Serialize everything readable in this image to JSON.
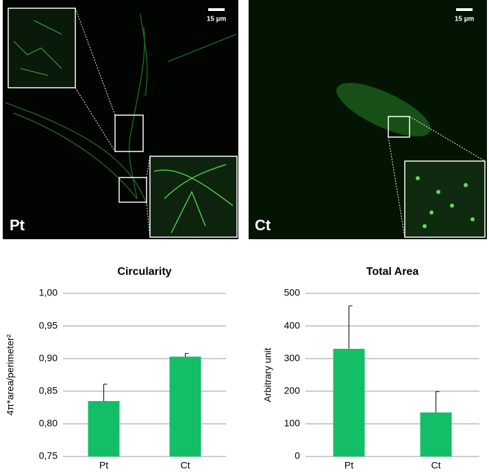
{
  "images": [
    {
      "label": "Pt",
      "scale_bar": "15 µm"
    },
    {
      "label": "Ct",
      "scale_bar": "15 µm"
    }
  ],
  "chart_data": [
    {
      "type": "bar",
      "title": "Circularity",
      "y_label": "4π*area/perimeter²",
      "categories": [
        "Pt",
        "Ct"
      ],
      "values": [
        0.835,
        0.903
      ],
      "errors": [
        0.026,
        0.005
      ],
      "color": "#13be67",
      "ylim": [
        0.75,
        1.0
      ],
      "yticks": [
        {
          "value": 0.75,
          "label": "0,75"
        },
        {
          "value": 0.8,
          "label": "0,80"
        },
        {
          "value": 0.85,
          "label": "0,85"
        },
        {
          "value": 0.9,
          "label": "0,90"
        },
        {
          "value": 0.95,
          "label": "0,95"
        },
        {
          "value": 1.0,
          "label": "1,00"
        }
      ],
      "grid": true
    },
    {
      "type": "bar",
      "title": "Total Area",
      "y_label": "Arbitrary unit",
      "categories": [
        "Pt",
        "Ct"
      ],
      "values": [
        330,
        135
      ],
      "errors": [
        132,
        64
      ],
      "color": "#13be67",
      "ylim": [
        0,
        500
      ],
      "yticks": [
        0,
        100,
        200,
        300,
        400,
        500
      ],
      "grid": true
    }
  ]
}
